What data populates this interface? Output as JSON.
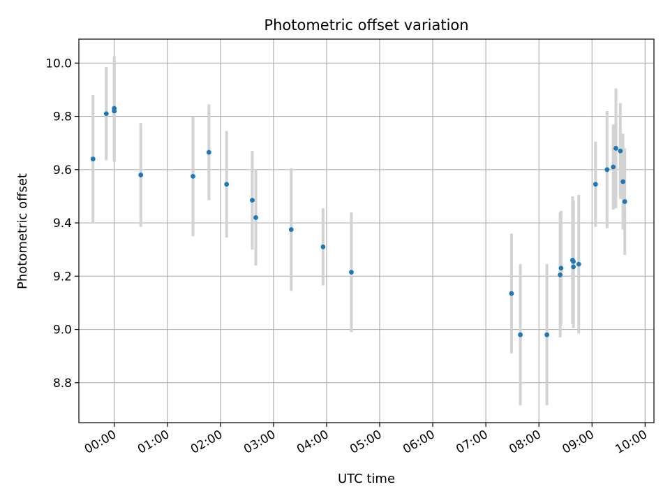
{
  "chart_data": {
    "type": "scatter",
    "title": "Photometric offset variation",
    "xlabel": "UTC time",
    "ylabel": "Photometric offset",
    "xlim": [
      "-00:40",
      "10:10"
    ],
    "ylim": [
      8.65,
      10.09
    ],
    "grid": true,
    "x_ticks": [
      "00:00",
      "01:00",
      "02:00",
      "03:00",
      "04:00",
      "05:00",
      "06:00",
      "07:00",
      "08:00",
      "09:00",
      "10:00"
    ],
    "y_ticks": [
      "8.8",
      "9.0",
      "9.2",
      "9.4",
      "9.6",
      "9.8",
      "10.0"
    ],
    "colors": {
      "point": "#1f77b4",
      "errorbar": "#d3d3d3",
      "grid": "#b0b0b0"
    },
    "points": [
      {
        "t": "-00:24",
        "y": 9.64,
        "err": 0.24
      },
      {
        "t": "-00:09",
        "y": 9.81,
        "err": 0.175
      },
      {
        "t": "00:00",
        "y": 9.83,
        "err": 0.195
      },
      {
        "t": "00:00",
        "y": 9.82,
        "err": 0.19
      },
      {
        "t": "00:30",
        "y": 9.58,
        "err": 0.195
      },
      {
        "t": "01:29",
        "y": 9.575,
        "err": 0.225
      },
      {
        "t": "01:47",
        "y": 9.665,
        "err": 0.18
      },
      {
        "t": "02:07",
        "y": 9.545,
        "err": 0.2
      },
      {
        "t": "02:36",
        "y": 9.485,
        "err": 0.185
      },
      {
        "t": "02:40",
        "y": 9.42,
        "err": 0.18
      },
      {
        "t": "03:20",
        "y": 9.375,
        "err": 0.23
      },
      {
        "t": "03:56",
        "y": 9.31,
        "err": 0.145
      },
      {
        "t": "04:28",
        "y": 9.215,
        "err": 0.225
      },
      {
        "t": "07:29",
        "y": 9.135,
        "err": 0.225
      },
      {
        "t": "07:39",
        "y": 8.98,
        "err": 0.265
      },
      {
        "t": "08:09",
        "y": 8.98,
        "err": 0.265
      },
      {
        "t": "08:24",
        "y": 9.205,
        "err": 0.235
      },
      {
        "t": "08:25",
        "y": 9.23,
        "err": 0.215
      },
      {
        "t": "08:38",
        "y": 9.26,
        "err": 0.24
      },
      {
        "t": "08:39",
        "y": 9.255,
        "err": 0.23
      },
      {
        "t": "08:39",
        "y": 9.235,
        "err": 0.23
      },
      {
        "t": "08:45",
        "y": 9.245,
        "err": 0.26
      },
      {
        "t": "09:04",
        "y": 9.545,
        "err": 0.16
      },
      {
        "t": "09:17",
        "y": 9.6,
        "err": 0.22
      },
      {
        "t": "09:24",
        "y": 9.61,
        "err": 0.16
      },
      {
        "t": "09:27",
        "y": 9.68,
        "err": 0.225
      },
      {
        "t": "09:32",
        "y": 9.67,
        "err": 0.18
      },
      {
        "t": "09:35",
        "y": 9.555,
        "err": 0.18
      },
      {
        "t": "09:37",
        "y": 9.48,
        "err": 0.2
      }
    ]
  }
}
